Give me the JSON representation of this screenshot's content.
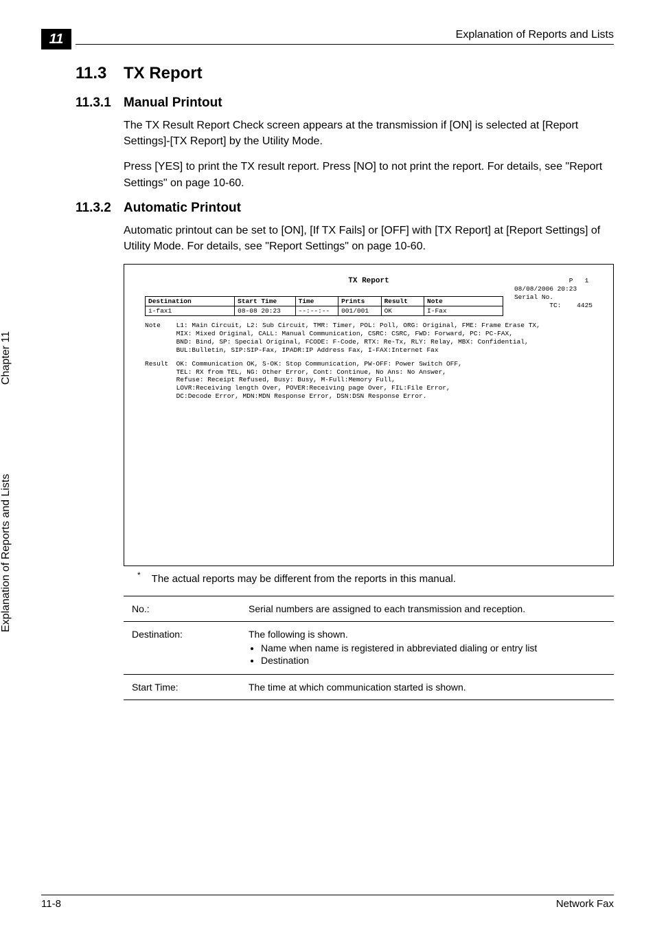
{
  "chapter_tab": "11",
  "running_header": "Explanation of Reports and Lists",
  "h2": {
    "num": "11.3",
    "title": "TX Report"
  },
  "sec1": {
    "num": "11.3.1",
    "title": "Manual Printout",
    "p1": "The TX Result Report Check screen appears at the transmission if [ON] is selected at [Report Settings]-[TX Report] by the Utility Mode.",
    "p2": "Press [YES] to print the TX result report. Press [NO] to not print the report. For details, see \"Report Settings\" on page 10-60."
  },
  "sec2": {
    "num": "11.3.2",
    "title": "Automatic Printout",
    "p1": "Automatic printout can be set to [ON], [If TX Fails] or [OFF] with [TX Report] at [Report Settings] of Utility Mode. For details, see \"Report Settings\" on page 10-60."
  },
  "report": {
    "title": "TX Report",
    "meta": "              P   1\n08/08/2006 20:23\nSerial No.\n         TC:    4425",
    "headers": {
      "dest": "Destination",
      "start": "Start Time",
      "time": "Time",
      "prints": "Prints",
      "result": "Result",
      "note": "Note"
    },
    "row": {
      "dest": "i-fax1",
      "start": "08-08 20:23",
      "time": "--:--:--",
      "prints": "001/001",
      "result": "OK",
      "note": "I-Fax"
    },
    "note_block": "Note    L1: Main Circuit, L2: Sub Circuit, TMR: Timer, POL: Poll, ORG: Original, FME: Frame Erase TX,\n        MIX: Mixed Original, CALL: Manual Communication, CSRC: CSRC, FWD: Forward, PC: PC-FAX,\n        BND: Bind, SP: Special Original, FCODE: F-Code, RTX: Re-Tx, RLY: Relay, MBX: Confidential,\n        BUL:Bulletin, SIP:SIP-Fax, IPADR:IP Address Fax, I-FAX:Internet Fax",
    "result_block": "Result  OK: Communication OK, S-OK: Stop Communication, PW-OFF: Power Switch OFF,\n        TEL: RX from TEL, NG: Other Error, Cont: Continue, No Ans: No Answer,\n        Refuse: Receipt Refused, Busy: Busy, M-Full:Memory Full,\n        LOVR:Receiving length Over, POVER:Receiving page Over, FIL:File Error,\n        DC:Decode Error, MDN:MDN Response Error, DSN:DSN Response Error."
  },
  "footnote": "The actual reports may be different from the reports in this manual.",
  "desc_table": {
    "rows": [
      {
        "label": "No.:",
        "value_text": "Serial numbers are assigned to each transmission and reception."
      },
      {
        "label": "Destination:",
        "value_text": "The following is shown.",
        "bullets": [
          "Name when name is registered in abbreviated dialing or entry list",
          "Destination"
        ]
      },
      {
        "label": "Start Time:",
        "value_text": "The time at which communication started is shown."
      }
    ]
  },
  "side_label_1": "Chapter 11",
  "side_label_2": "Explanation of Reports and Lists",
  "footer": {
    "left": "11-8",
    "right": "Network Fax"
  }
}
